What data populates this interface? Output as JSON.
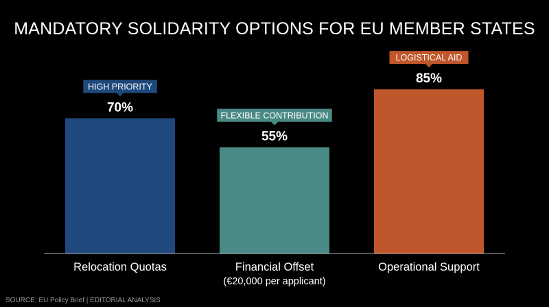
{
  "chart_data": {
    "type": "bar",
    "title": "MANDATORY SOLIDARITY OPTIONS FOR EU MEMBER STATES",
    "categories": [
      "Relocation Quotas",
      "Financial Offset",
      "Operational Support"
    ],
    "category_sublabels": [
      "",
      "(€20,000 per applicant)",
      ""
    ],
    "values": [
      70,
      55,
      85
    ],
    "value_labels": [
      "70%",
      "55%",
      "85%"
    ],
    "badges": [
      "HIGH PRIORITY",
      "FLEXIBLE CONTRIBUTION",
      "LOGISTICAL AID"
    ],
    "colors": [
      "#1f497d",
      "#4a8a86",
      "#c0562b"
    ],
    "ylim": [
      0,
      100
    ],
    "xlabel": "",
    "ylabel": "",
    "grid": false,
    "baseline_color": "#8a8a8a"
  },
  "source": "SOURCE: EU Policy Brief | EDITORIAL ANALYSIS",
  "background_color": "#000000"
}
